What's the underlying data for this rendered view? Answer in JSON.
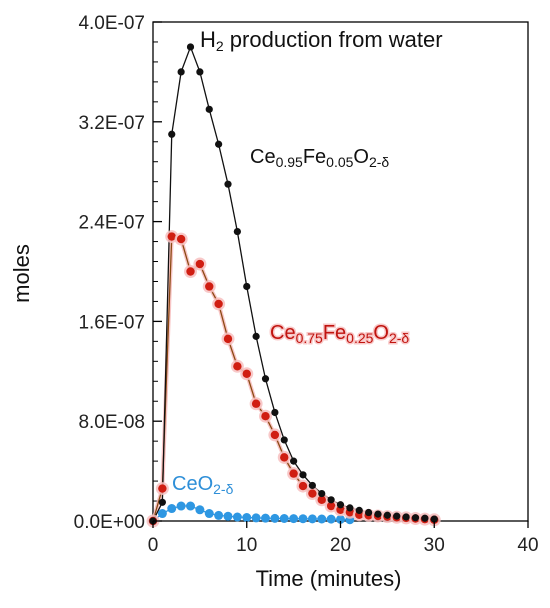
{
  "chart_data": {
    "type": "scatter",
    "title": "",
    "xlabel": "Time (minutes)",
    "ylabel": "moles",
    "xlim": [
      0,
      40
    ],
    "ylim": [
      0,
      4e-07
    ],
    "x_ticks": [
      0,
      10,
      20,
      30,
      40
    ],
    "x_tick_labels": [
      "0",
      "10",
      "20",
      "30",
      "40"
    ],
    "y_ticks": [
      0,
      8e-08,
      1.6e-07,
      2.4e-07,
      3.2e-07,
      4e-07
    ],
    "y_tick_labels": [
      "0.0E+00",
      "8.0E-08",
      "1.6E-07",
      "2.4E-07",
      "3.2E-07",
      "4.0E-07"
    ],
    "grid": false,
    "legend": "none",
    "annotations": [
      {
        "name": "title",
        "parts": [
          {
            "t": "H"
          },
          {
            "t": "2",
            "sub": true
          },
          {
            "t": " production from water"
          }
        ],
        "color": "#111111"
      },
      {
        "name": "label-fe005",
        "parts": [
          {
            "t": "Ce"
          },
          {
            "t": "0.95",
            "sub": true
          },
          {
            "t": "Fe"
          },
          {
            "t": "0.05",
            "sub": true
          },
          {
            "t": "O"
          },
          {
            "t": "2-δ",
            "sub": true
          }
        ],
        "color": "#111111"
      },
      {
        "name": "label-fe025",
        "parts": [
          {
            "t": "Ce"
          },
          {
            "t": "0.75",
            "sub": true
          },
          {
            "t": "Fe"
          },
          {
            "t": "0.25",
            "sub": true
          },
          {
            "t": "O"
          },
          {
            "t": "2-δ",
            "sub": true
          }
        ],
        "color": "#c0140f"
      },
      {
        "name": "label-ceo2",
        "parts": [
          {
            "t": "CeO"
          },
          {
            "t": "2-δ",
            "sub": true
          }
        ],
        "color": "#2e8fd8"
      }
    ],
    "series": [
      {
        "key": "fe005",
        "color": "#111111",
        "line_color": "#111111",
        "x": [
          0,
          1,
          2,
          3,
          4,
          5,
          6,
          7,
          8,
          9,
          10,
          11,
          12,
          13,
          14,
          15,
          16,
          17,
          18,
          19,
          20,
          21,
          22,
          23,
          24,
          25,
          26,
          27,
          28,
          29,
          30
        ],
        "y": [
          0,
          1.5e-08,
          3.1e-07,
          3.6e-07,
          3.8e-07,
          3.6e-07,
          3.3e-07,
          3.02e-07,
          2.7e-07,
          2.32e-07,
          1.88e-07,
          1.48e-07,
          1.14e-07,
          8.7e-08,
          6.5e-08,
          4.8e-08,
          3.7e-08,
          2.85e-08,
          2.2e-08,
          1.7e-08,
          1.3e-08,
          1.05e-08,
          8.5e-09,
          6.8e-09,
          5.5e-09,
          4.6e-09,
          3.9e-09,
          3.2e-09,
          2.6e-09,
          2.2e-09,
          1.5e-09
        ]
      },
      {
        "key": "fe025",
        "color": "#d01e12",
        "line_color": "#8b4a13",
        "x": [
          0,
          1,
          2,
          3,
          4,
          5,
          6,
          7,
          8,
          9,
          10,
          11,
          12,
          13,
          14,
          15,
          16,
          17,
          18,
          19,
          20,
          21,
          22,
          23,
          24,
          25,
          26,
          27,
          28,
          29,
          30
        ],
        "y": [
          0,
          2.6e-08,
          2.28e-07,
          2.26e-07,
          2e-07,
          2.06e-07,
          1.88e-07,
          1.74e-07,
          1.46e-07,
          1.24e-07,
          1.18e-07,
          9.4e-08,
          8.4e-08,
          6.9e-08,
          5.1e-08,
          3.8e-08,
          2.8e-08,
          2.2e-08,
          1.7e-08,
          1.2e-08,
          9e-09,
          7e-09,
          5e-09,
          4.5e-09,
          4e-09,
          3.5e-09,
          3e-09,
          2.5e-09,
          2e-09,
          1.5e-09,
          1e-09
        ]
      },
      {
        "key": "ceo2",
        "color": "#2e97e2",
        "line_color": "#2e97e2",
        "x": [
          0,
          1,
          2,
          3,
          4,
          5,
          6,
          7,
          8,
          9,
          10,
          11,
          12,
          13,
          14,
          15,
          16,
          17,
          18,
          19,
          20,
          21
        ],
        "y": [
          0,
          6e-09,
          1e-08,
          1.2e-08,
          1.2e-08,
          9e-09,
          6e-09,
          4.5e-09,
          3.8e-09,
          3.2e-09,
          2.8e-09,
          2.5e-09,
          2.3e-09,
          2.1e-09,
          2e-09,
          1.9e-09,
          1.8e-09,
          1.7e-09,
          1.6e-09,
          1.5e-09,
          1.3e-09,
          1e-09
        ]
      }
    ]
  }
}
